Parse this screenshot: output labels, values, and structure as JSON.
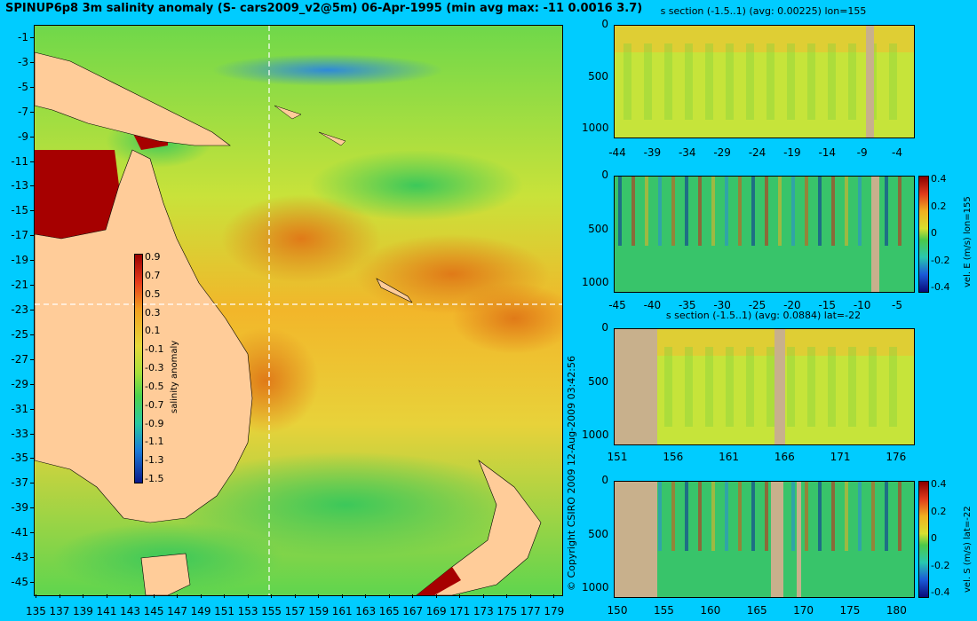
{
  "title": "SPINUP6p8 3m salinity anomaly (S- cars2009_v2@5m) 06-Apr-1995 (min avg max: -11 0.0016 3.7)",
  "copyright": "© Copyright CSIRO 2009  12-Aug-2009 03:42:56",
  "map": {
    "lat_ticks": [
      "-1",
      "-3",
      "-5",
      "-7",
      "-9",
      "-11",
      "-13",
      "-15",
      "-17",
      "-19",
      "-21",
      "-23",
      "-25",
      "-27",
      "-29",
      "-31",
      "-33",
      "-35",
      "-37",
      "-39",
      "-41",
      "-43",
      "-45"
    ],
    "lon_ticks": [
      "135",
      "137",
      "139",
      "141",
      "143",
      "145",
      "147",
      "149",
      "151",
      "153",
      "155",
      "157",
      "159",
      "161",
      "163",
      "165",
      "167",
      "169",
      "171",
      "173",
      "175",
      "177",
      "179"
    ],
    "colorbar": {
      "label": "salinity anomaly",
      "ticks": [
        "0.9",
        "0.7",
        "0.5",
        "0.3",
        "0.1",
        "-0.1",
        "-0.3",
        "-0.5",
        "-0.7",
        "-0.9",
        "-1.1",
        "-1.3",
        "-1.5"
      ]
    },
    "land_color": "#ffcc99",
    "section_lon": 155,
    "section_lat": -22
  },
  "panels": [
    {
      "id": "s-lon",
      "title": "s section (-1.5..1) (avg: 0.00225) lon=155",
      "y_ticks": [
        "0",
        "500",
        "1000"
      ],
      "x_ticks": [
        "-44",
        "-39",
        "-34",
        "-29",
        "-24",
        "-19",
        "-14",
        "-9",
        "-4"
      ],
      "colorbar": null
    },
    {
      "id": "e-lon",
      "title": "",
      "y_ticks": [
        "0",
        "500",
        "1000"
      ],
      "x_ticks": [
        "-45",
        "-40",
        "-35",
        "-30",
        "-25",
        "-20",
        "-15",
        "-10",
        "-5"
      ],
      "colorbar": {
        "label": "vel. E (m/s) lon=155",
        "ticks": [
          "0.4",
          "0.2",
          "0",
          "-0.2",
          "-0.4"
        ]
      }
    },
    {
      "id": "s-lat",
      "title": "s section (-1.5..1) (avg: 0.0884) lat=-22",
      "y_ticks": [
        "0",
        "500",
        "1000"
      ],
      "x_ticks": [
        "151",
        "156",
        "161",
        "166",
        "171",
        "176"
      ],
      "colorbar": null
    },
    {
      "id": "s-vel-lat",
      "title": "",
      "y_ticks": [
        "0",
        "500",
        "1000"
      ],
      "x_ticks": [
        "150",
        "155",
        "160",
        "165",
        "170",
        "175",
        "180"
      ],
      "colorbar": {
        "label": "vel. S (m/s) lat=-22",
        "ticks": [
          "0.4",
          "0.2",
          "0",
          "-0.2",
          "-0.4"
        ]
      }
    }
  ],
  "colors": {
    "background": "#00ccff",
    "section_fill": "#ccc08f",
    "land_gray": "#c8b08c"
  }
}
